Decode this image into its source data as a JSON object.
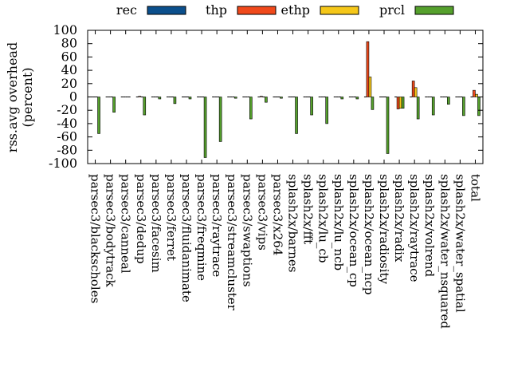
{
  "chart_data": {
    "type": "bar",
    "title": "",
    "xlabel": "",
    "ylabel": "rss.avg overhead",
    "ylabel2": "(percent)",
    "ylim": [
      -100,
      100
    ],
    "yticks": [
      100,
      80,
      60,
      40,
      20,
      0,
      -20,
      -40,
      -60,
      -80,
      -100
    ],
    "legend_position": "top",
    "categories": [
      "parsec3/blackscholes",
      "parsec3/bodytrack",
      "parsec3/canneal",
      "parsec3/dedup",
      "parsec3/facesim",
      "parsec3/ferret",
      "parsec3/fluidanimate",
      "parsec3/freqmine",
      "parsec3/raytrace",
      "parsec3/streamcluster",
      "parsec3/swaptions",
      "parsec3/vips",
      "parsec3/x264",
      "splash2x/barnes",
      "splash2x/fft",
      "splash2x/lu_cb",
      "splash2x/lu_ncb",
      "splash2x/ocean_cp",
      "splash2x/ocean_ncp",
      "splash2x/radiosity",
      "splash2x/radix",
      "splash2x/raytrace",
      "splash2x/volrend",
      "splash2x/water_nsquared",
      "splash2x/water_spatial",
      "total"
    ],
    "series": [
      {
        "name": "rec",
        "color": "#0b4f8c",
        "values": [
          0,
          0,
          0,
          0,
          0,
          0,
          0,
          0,
          0,
          0,
          0,
          0,
          0,
          0,
          0,
          0,
          0,
          0,
          0,
          0,
          0,
          0,
          0,
          0,
          0,
          0
        ]
      },
      {
        "name": "thp",
        "color": "#f0491b",
        "values": [
          0,
          0,
          0,
          1,
          0,
          0,
          0,
          0,
          0,
          0,
          0,
          1,
          0,
          0,
          0,
          0,
          0,
          0,
          83,
          0,
          -18,
          24,
          0,
          0,
          0,
          10
        ]
      },
      {
        "name": "ethp",
        "color": "#f5c719",
        "values": [
          0,
          0,
          0,
          0,
          0,
          0,
          0,
          0,
          0,
          0,
          0,
          0,
          0,
          0,
          0,
          0,
          0,
          0,
          30,
          0,
          -17,
          14,
          0,
          0,
          0,
          4
        ]
      },
      {
        "name": "prcl",
        "color": "#55a02c",
        "values": [
          -55,
          -23,
          0,
          -27,
          -3,
          -10,
          -3,
          -91,
          -67,
          -2,
          -33,
          -8,
          -2,
          -55,
          -27,
          -40,
          -3,
          -3,
          -19,
          -85,
          -17,
          -33,
          -27,
          -11,
          -28,
          -28
        ]
      }
    ]
  }
}
